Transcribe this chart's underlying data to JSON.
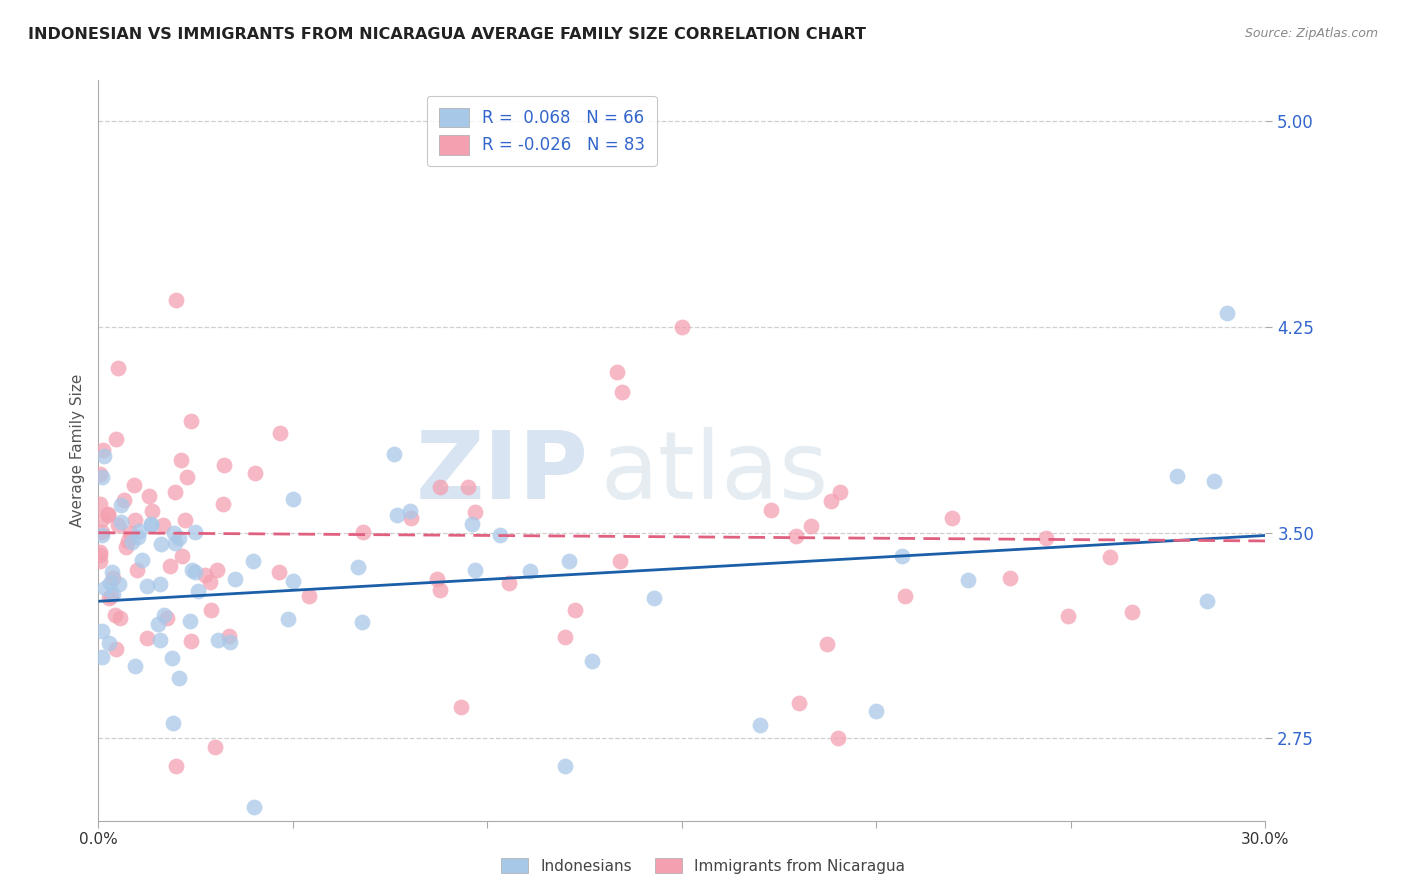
{
  "title": "INDONESIAN VS IMMIGRANTS FROM NICARAGUA AVERAGE FAMILY SIZE CORRELATION CHART",
  "source": "Source: ZipAtlas.com",
  "ylabel": "Average Family Size",
  "yticks": [
    2.75,
    3.5,
    4.25,
    5.0
  ],
  "xlim": [
    0.0,
    30.0
  ],
  "ylim": [
    2.45,
    5.15
  ],
  "watermark_zip": "ZIP",
  "watermark_atlas": "atlas",
  "legend_r1": "R =  0.068",
  "legend_n1": "N = 66",
  "legend_r2": "R = -0.026",
  "legend_n2": "N = 83",
  "blue_scatter_color": "#a8c8e8",
  "pink_scatter_color": "#f4a0b0",
  "blue_line_color": "#1a5fa8",
  "pink_line_color": "#e06080",
  "grid_color": "#d0d0d0",
  "title_color": "#222222",
  "source_color": "#888888",
  "tick_color": "#3366cc",
  "axis_color": "#aaaaaa"
}
